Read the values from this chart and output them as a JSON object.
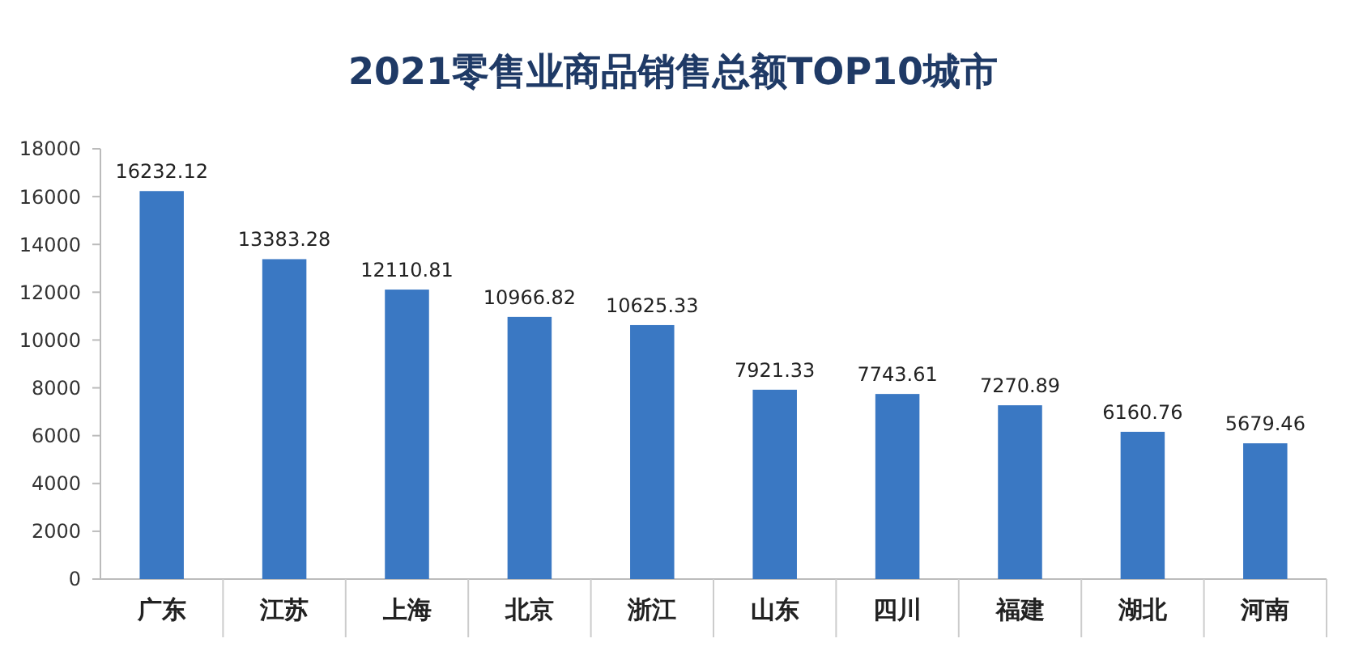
{
  "chart_data": {
    "type": "bar",
    "title": "2021零售业商品销售总额TOP10城市",
    "categories": [
      "广东",
      "江苏",
      "上海",
      "北京",
      "浙江",
      "山东",
      "四川",
      "福建",
      "湖北",
      "河南"
    ],
    "values": [
      16232.12,
      13383.28,
      12110.81,
      10966.82,
      10625.33,
      7921.33,
      7743.61,
      7270.89,
      6160.76,
      5679.46
    ],
    "color": "#3a78c3",
    "ylim": [
      0,
      18000
    ],
    "yticks": [
      0,
      2000,
      4000,
      6000,
      8000,
      10000,
      12000,
      14000,
      16000,
      18000
    ],
    "grid": false,
    "data_labels": true
  }
}
